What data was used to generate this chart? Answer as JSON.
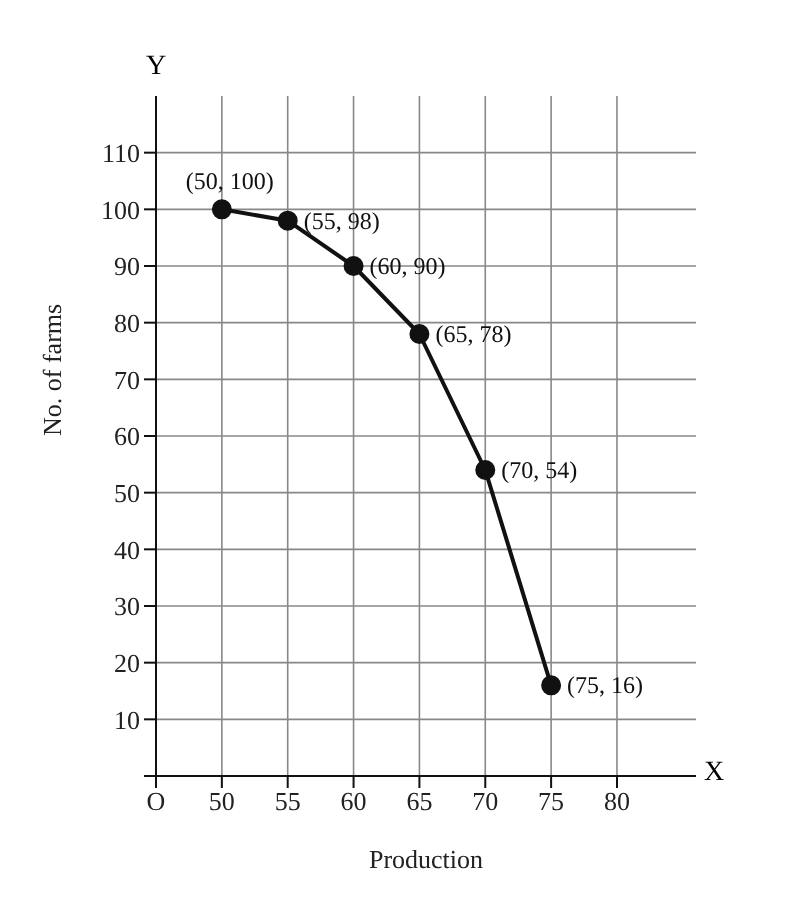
{
  "chart_data": {
    "type": "line",
    "xlabel": "Production",
    "ylabel": "No. of farms",
    "annotations": [
      "Y",
      "X"
    ],
    "x": [
      50,
      55,
      60,
      65,
      70,
      75
    ],
    "series": [
      {
        "color": "#111111",
        "values": [
          100,
          98,
          90,
          78,
          54,
          16
        ],
        "value_labels": [
          "(50, 100)",
          "(55, 98)",
          "(60, 90)",
          "(65, 78)",
          "(70, 54)",
          "(75, 16)"
        ]
      }
    ],
    "xlim": [
      45,
      86
    ],
    "xticks": [
      {
        "value": 45,
        "label": "O"
      },
      50,
      55,
      60,
      65,
      70,
      75,
      80
    ],
    "ylim": [
      0,
      120
    ],
    "yticks": [
      {
        "value": 0,
        "label": null
      },
      10,
      20,
      30,
      40,
      50,
      60,
      70,
      80,
      90,
      100,
      110
    ],
    "grid": true,
    "marker": "circle",
    "line_style": "solid"
  }
}
